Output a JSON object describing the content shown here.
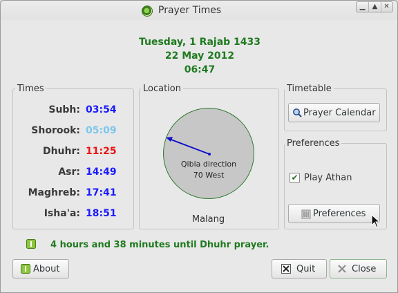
{
  "window": {
    "title": "Prayer Times"
  },
  "date": {
    "hijri": "Tuesday, 1 Rajab 1433",
    "gregorian": "22 May 2012",
    "time": "06:47"
  },
  "times": {
    "label": "Times",
    "rows": [
      {
        "name": "Subh:",
        "time": "03:54",
        "color": "#1a1aff"
      },
      {
        "name": "Shorook:",
        "time": "05:09",
        "color": "#7ec6ec"
      },
      {
        "name": "Dhuhr:",
        "time": "11:25",
        "color": "#ee1111"
      },
      {
        "name": "Asr:",
        "time": "14:49",
        "color": "#1a1aff"
      },
      {
        "name": "Maghreb:",
        "time": "17:41",
        "color": "#1a1aff"
      },
      {
        "name": "Isha'a:",
        "time": "18:51",
        "color": "#1a1aff"
      }
    ]
  },
  "location": {
    "label": "Location",
    "qibla_label": "Qibla direction",
    "qibla_value": "70 West",
    "city": "Malang"
  },
  "timetable": {
    "label": "Timetable",
    "button": "Prayer Calendar"
  },
  "preferences": {
    "label": "Preferences",
    "checkbox": "Play Athan",
    "checked": true,
    "button": "Preferences"
  },
  "status": {
    "message": "4 hours and 38 minutes until Dhuhr prayer."
  },
  "buttons": {
    "about": "About",
    "quit": "Quit",
    "close": "Close"
  },
  "colors": {
    "accent_green": "#1f7a1f",
    "needle": "#1010cc"
  }
}
